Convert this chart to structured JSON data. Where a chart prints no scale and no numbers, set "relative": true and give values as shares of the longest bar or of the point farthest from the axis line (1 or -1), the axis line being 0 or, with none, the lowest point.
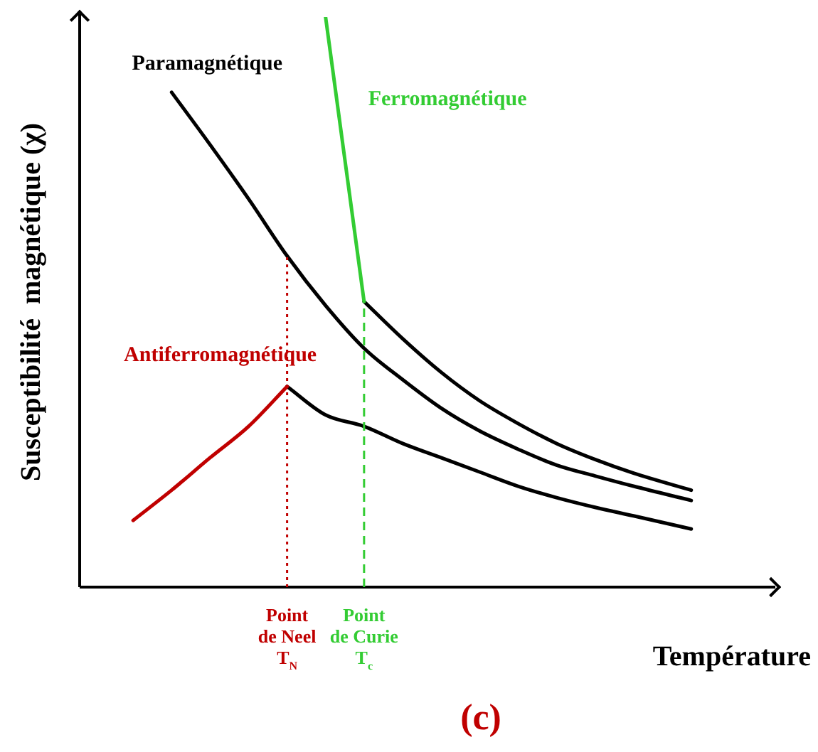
{
  "chart_data": {
    "type": "line",
    "relative": true,
    "ylabel": "Susceptibilité  magnétique (χ)",
    "xlabel": "Température",
    "annotations": [
      "(c)"
    ],
    "categories": [
      null,
      null,
      null,
      null,
      null,
      null,
      null,
      null,
      null,
      null,
      null,
      "Point de Neel\nT$_{N}$",
      null,
      null,
      null,
      "Point de Curie\nT$_{c}$",
      null,
      null,
      null,
      null,
      null,
      null,
      null,
      null,
      null,
      null,
      null,
      null,
      null,
      null,
      null,
      null,
      null,
      null,
      null,
      null,
      null
    ],
    "series": [
      {
        "name": "Paramagnétique",
        "color": "#000000",
        "values": [
          null,
          null,
          null,
          null,
          null,
          0.868,
          null,
          0.776,
          null,
          0.681,
          null,
          0.581,
          null,
          0.494,
          null,
          0.419,
          null,
          0.364,
          null,
          0.314,
          null,
          0.274,
          null,
          0.242,
          null,
          0.214,
          null,
          0.195,
          null,
          0.177,
          null,
          null,
          0.152,
          null,
          null,
          null,
          null
        ]
      },
      {
        "name": "Ferromagnétique",
        "color": "#33cc33",
        "values": [
          null,
          null,
          null,
          null,
          null,
          null,
          null,
          null,
          null,
          null,
          null,
          null,
          null,
          1.0,
          null,
          0.501,
          null,
          null,
          null,
          null,
          null,
          null,
          null,
          null,
          null,
          null,
          null,
          null,
          null,
          null,
          null,
          null,
          null,
          null,
          null,
          null,
          null
        ]
      },
      {
        "color": "#000000",
        "values": [
          null,
          null,
          null,
          null,
          null,
          null,
          null,
          null,
          null,
          null,
          null,
          null,
          null,
          null,
          null,
          0.501,
          null,
          0.436,
          null,
          0.377,
          null,
          0.327,
          null,
          0.287,
          null,
          0.252,
          null,
          0.224,
          null,
          0.2,
          null,
          null,
          0.17,
          null,
          null,
          null,
          null
        ]
      },
      {
        "name": "Antiferromagnétique",
        "color": "#c00000",
        "values": [
          null,
          null,
          null,
          0.117,
          null,
          0.17,
          null,
          0.227,
          null,
          0.282,
          null,
          0.352,
          null,
          null,
          null,
          null,
          null,
          null,
          null,
          null,
          null,
          null,
          null,
          null,
          null,
          null,
          null,
          null,
          null,
          null,
          null,
          null,
          null,
          null,
          null,
          null,
          null
        ]
      },
      {
        "color": "#000000",
        "values": [
          null,
          null,
          null,
          null,
          null,
          null,
          null,
          null,
          null,
          null,
          null,
          0.352,
          null,
          0.302,
          null,
          0.282,
          null,
          0.252,
          null,
          0.227,
          null,
          0.202,
          null,
          0.177,
          null,
          0.157,
          null,
          0.14,
          null,
          0.125,
          null,
          null,
          0.102,
          null,
          null,
          null,
          null
        ]
      }
    ],
    "ref_lines": [
      {
        "axis": "x",
        "value": "Point de Neel\nT$_{N}$",
        "color": "#c00000",
        "line_style": "dotted"
      },
      {
        "axis": "x",
        "value": "Point de Curie\nT$_{c}$",
        "color": "#33cc33",
        "line_style": "dashed"
      }
    ],
    "legend": false,
    "marker": "none"
  }
}
